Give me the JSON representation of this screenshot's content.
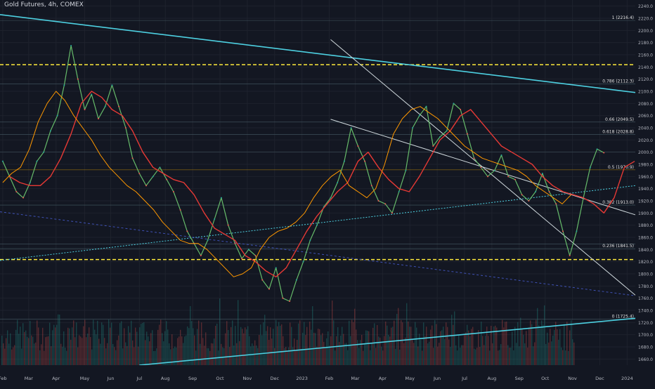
{
  "header": {
    "title": "Gold Futures, 4h, COMEX"
  },
  "colors": {
    "background": "#131722",
    "grid": "#1e222d",
    "up": "#26a69a",
    "down": "#ef5350",
    "trend": "#4dd0e1",
    "dash_yellow": "#ffeb3b",
    "price_tag": "#f23645",
    "fib_tag": "#f9a825"
  },
  "chart_data": {
    "type": "line",
    "symbol": "Gold Futures",
    "interval": "4h",
    "exchange": "COMEX",
    "ylim": [
      1650,
      2250
    ],
    "y_ticks": [
      "1660.0",
      "1680.0",
      "1700.0",
      "1720.0",
      "1740.0",
      "1760.0",
      "1780.0",
      "1800.0",
      "1820.0",
      "1840.0",
      "1860.0",
      "1880.0",
      "1900.0",
      "1920.0",
      "1940.0",
      "1960.0",
      "1980.0",
      "2000.0",
      "2020.0",
      "2040.0",
      "2060.0",
      "2080.0",
      "2100.0",
      "2120.0",
      "2140.0",
      "2160.0",
      "2180.0",
      "2200.0",
      "2220.0",
      "2240.0"
    ],
    "x_ticks": [
      "Feb",
      "Mar",
      "Apr",
      "May",
      "Jun",
      "Jul",
      "Aug",
      "Sep",
      "Oct",
      "Nov",
      "Dec",
      "2023",
      "Feb",
      "Mar",
      "Apr",
      "May",
      "Jun",
      "Jul",
      "Aug",
      "Sep",
      "Oct",
      "Nov",
      "Dec",
      "2024"
    ],
    "x_tick_index": [
      0.0,
      1.9,
      3.9,
      6.0,
      7.9,
      10.0,
      11.9,
      13.9,
      15.9,
      17.9,
      19.9,
      21.9,
      23.9,
      25.8,
      27.8,
      29.8,
      31.8,
      33.8,
      35.8,
      37.8,
      39.7,
      41.7,
      43.7,
      45.7
    ],
    "x_domain": [
      -0.2,
      46.3
    ],
    "series": [
      {
        "values": [
          1985,
          1960,
          1935,
          1925,
          1950,
          1985,
          2000,
          2035,
          2060,
          2110,
          2175,
          2120,
          2070,
          2095,
          2055,
          2075,
          2110,
          2075,
          2040,
          1990,
          1965,
          1945,
          1960,
          1975,
          1955,
          1935,
          1905,
          1870,
          1850,
          1830,
          1855,
          1890,
          1925,
          1880,
          1850,
          1825,
          1840,
          1830,
          1790,
          1775,
          1810,
          1760,
          1755,
          1790,
          1820,
          1855,
          1880,
          1910,
          1925,
          1950,
          1985,
          2040,
          2010,
          1985,
          1945,
          1920,
          1915,
          1900,
          1935,
          1970,
          2040,
          2060,
          2075,
          2010,
          2025,
          2035,
          2080,
          2070,
          2030,
          1990,
          1975,
          1960,
          1970,
          1995,
          1960,
          1955,
          1930,
          1920,
          1935,
          1965,
          1935,
          1915,
          1870,
          1830,
          1870,
          1925,
          1975,
          2005,
          1999
        ],
        "index_start": 0.0,
        "index_step": 0.5
      },
      {
        "values": [
          1960,
          1950,
          1945,
          1945,
          1960,
          1990,
          2030,
          2080,
          2100,
          2090,
          2070,
          2060,
          2035,
          2000,
          1975,
          1965,
          1955,
          1950,
          1930,
          1900,
          1875,
          1865,
          1855,
          1830,
          1820,
          1805,
          1795,
          1810,
          1840,
          1870,
          1895,
          1915,
          1935,
          1950,
          1985,
          2000,
          1975,
          1955,
          1940,
          1935,
          1960,
          1990,
          2020,
          2035,
          2060,
          2070,
          2050,
          2030,
          2010,
          2000,
          1990,
          1980,
          1960,
          1945,
          1935,
          1930,
          1925,
          1915,
          1900,
          1925,
          1975,
          1985
        ],
        "index_start": 0.5,
        "index_step": 0.75
      },
      {
        "values": [
          1950,
          1965,
          1975,
          2005,
          2050,
          2080,
          2100,
          2085,
          2060,
          2040,
          2020,
          1995,
          1975,
          1960,
          1945,
          1935,
          1920,
          1905,
          1885,
          1870,
          1855,
          1850,
          1850,
          1840,
          1825,
          1810,
          1795,
          1800,
          1810,
          1840,
          1860,
          1870,
          1875,
          1885,
          1900,
          1925,
          1945,
          1960,
          1970,
          1945,
          1935,
          1925,
          1940,
          1980,
          2030,
          2055,
          2070,
          2075,
          2065,
          2055,
          2040,
          2025,
          2010,
          2000,
          1990,
          1985,
          1980,
          1975,
          1970,
          1960,
          1945,
          1935,
          1925,
          1915,
          1930
        ],
        "index_start": 0.0,
        "index_step": 0.65
      }
    ],
    "levels": [
      {
        "label": "1 (2216.4)",
        "value": 2216.4
      },
      {
        "label": "2143.7",
        "value": 2143.7
      },
      {
        "label": "0.786 (2112.3)",
        "value": 2112.3
      },
      {
        "label": "0.66 (2049.5)",
        "value": 2049.5
      },
      {
        "label": "0.618 (2028.8)",
        "value": 2028.8
      },
      {
        "label": "1999.9",
        "value": 1999.9
      },
      {
        "label": "0.5 (1970.9)",
        "value": 1970.9
      },
      {
        "label": "0.382 (1913.0)",
        "value": 1913.0
      },
      {
        "label": "1849.0",
        "value": 1849.0
      },
      {
        "label": "0.236 (1841.5)",
        "value": 1841.5
      },
      {
        "label": "1823.5",
        "value": 1823.5
      },
      {
        "label": "0 (1725.4)",
        "value": 1725.4
      }
    ],
    "trendlines": [
      {
        "name": "upper-resistance",
        "from": [
          -0.2,
          2226
        ],
        "to": [
          46.3,
          2098
        ]
      },
      {
        "name": "lower-support",
        "from": [
          10.0,
          1650
        ],
        "to": [
          46.3,
          1727
        ]
      },
      {
        "name": "channel-top",
        "from": [
          24.0,
          2185
        ],
        "to": [
          46.3,
          1765
        ]
      },
      {
        "name": "channel-mid",
        "from": [
          24.0,
          2054
        ],
        "to": [
          46.3,
          1897
        ]
      },
      {
        "name": "dotted-rising",
        "from": [
          -0.2,
          1822
        ],
        "to": [
          46.3,
          1945
        ]
      },
      {
        "name": "dotted-falling",
        "from": [
          -0.2,
          1902
        ],
        "to": [
          46.3,
          1764
        ]
      }
    ],
    "grid": true,
    "price_scale_side": "right"
  }
}
